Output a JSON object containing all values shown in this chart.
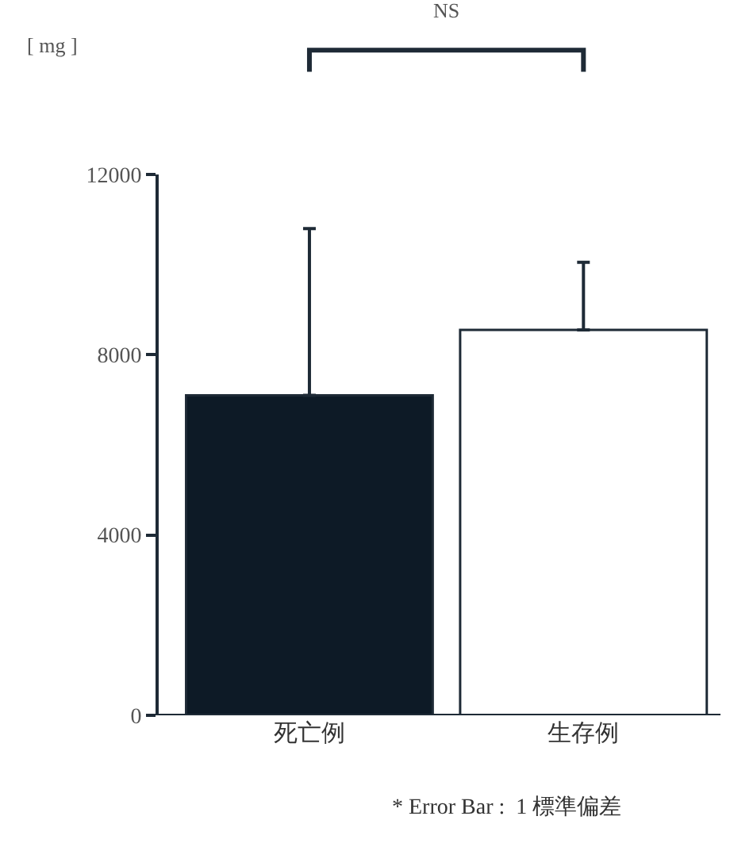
{
  "chart_data": {
    "type": "bar",
    "categories": [
      "死亡例",
      "生存例"
    ],
    "values": [
      7100,
      8550
    ],
    "colors": [
      "#0d1a26",
      "#ffffff"
    ],
    "errors": [
      [
        7100,
        10800
      ],
      [
        8550,
        10050
      ]
    ],
    "ylim": [
      0,
      12000
    ],
    "yticks": [
      0,
      4000,
      8000,
      12000
    ],
    "annotations": [
      "[ mg ]",
      "NS",
      "* Error Bar :  1 標準偏差"
    ]
  }
}
